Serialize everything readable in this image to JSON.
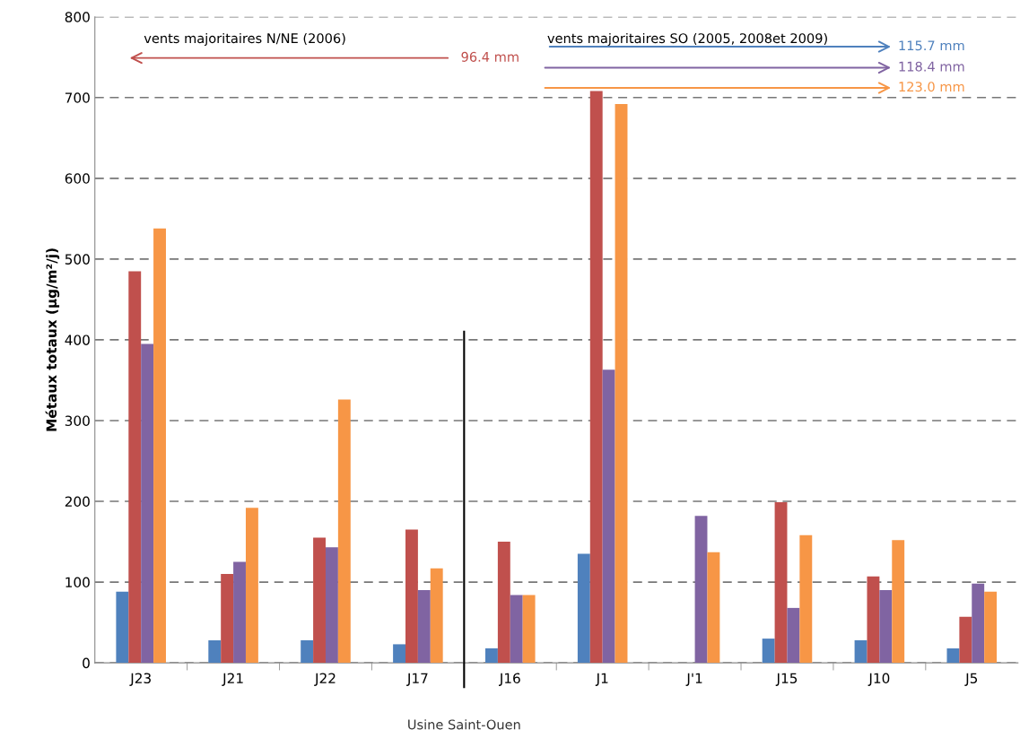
{
  "chart_data": {
    "type": "bar",
    "ylabel": "Métaux totaux (µg/m²/j)",
    "categories": [
      "J23",
      "J21",
      "J22",
      "J17",
      "J16",
      "J1",
      "J'1",
      "J15",
      "J10",
      "J5"
    ],
    "series": [
      {
        "color": "#4f81bd",
        "values": [
          88,
          28,
          28,
          23,
          18,
          135,
          null,
          30,
          28,
          18
        ]
      },
      {
        "color": "#c0504d",
        "values": [
          485,
          110,
          155,
          165,
          150,
          708,
          null,
          199,
          107,
          57
        ]
      },
      {
        "color": "#8064a2",
        "values": [
          395,
          125,
          143,
          90,
          84,
          363,
          182,
          68,
          90,
          98
        ]
      },
      {
        "color": "#f79646",
        "values": [
          538,
          192,
          326,
          117,
          84,
          692,
          137,
          158,
          152,
          88
        ]
      }
    ],
    "ylim": [
      0,
      800
    ],
    "yticks": [
      0,
      100,
      200,
      300,
      400,
      500,
      600,
      700,
      800
    ],
    "grid": "y",
    "annotations": [
      "vents majoritaires N/NE (2006)",
      "96.4 mm",
      "vents majoritaires SO (2005, 2008et 2009)",
      "115.7 mm",
      "118.4 mm",
      "123.0 mm",
      "Usine Saint-Ouen"
    ]
  }
}
